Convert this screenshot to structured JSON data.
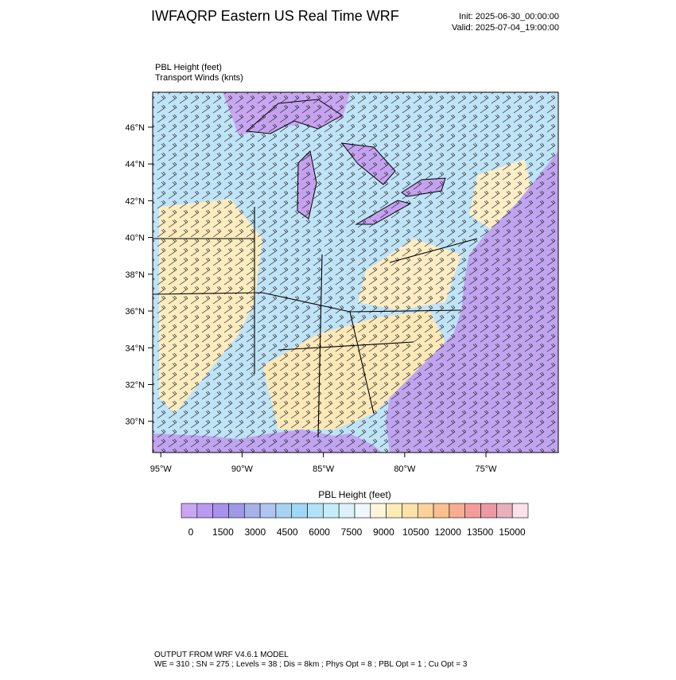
{
  "header": {
    "title": "IWFAQRP Eastern US Real Time WRF",
    "init": "Init: 2025-06-30_00:00:00",
    "valid": "Valid: 2025-07-04_19:00:00"
  },
  "map": {
    "field_label": "PBL Height   (feet)",
    "vector_label": "Transport Winds   (knts)",
    "latlim": [
      28.3,
      47.9
    ],
    "lonlim": [
      -95.5,
      -70.55
    ],
    "lat_ticks": [
      {
        "value": 46,
        "label": "46°N"
      },
      {
        "value": 44,
        "label": "44°N"
      },
      {
        "value": 42,
        "label": "42°N"
      },
      {
        "value": 40,
        "label": "40°N"
      },
      {
        "value": 38,
        "label": "38°N"
      },
      {
        "value": 36,
        "label": "36°N"
      },
      {
        "value": 34,
        "label": "34°N"
      },
      {
        "value": 32,
        "label": "32°N"
      },
      {
        "value": 30,
        "label": "30°N"
      }
    ],
    "lon_ticks": [
      {
        "value": -95,
        "label": "95°W"
      },
      {
        "value": -90,
        "label": "90°W"
      },
      {
        "value": -85,
        "label": "85°W"
      },
      {
        "value": -80,
        "label": "80°W"
      },
      {
        "value": -75,
        "label": "75°W"
      }
    ]
  },
  "colorbar": {
    "title": "PBL Height  (feet)",
    "labels": [
      0,
      1500,
      3000,
      4500,
      6000,
      7500,
      9000,
      10500,
      12000,
      13500,
      15000
    ],
    "colors": [
      "#c9a6f2",
      "#b99af0",
      "#a892ec",
      "#9e9ae6",
      "#a6b2ea",
      "#b0c4f2",
      "#a8d2f4",
      "#9ed8f6",
      "#b2e2f8",
      "#c6ecfa",
      "#dbf2fb",
      "#eef8fc",
      "#fdf6dc",
      "#fdecb8",
      "#fde2a8",
      "#fbd29a",
      "#f9c092",
      "#f8ac92",
      "#f49c9c",
      "#eb9aa4",
      "#e8b0bc",
      "#fbe2ea"
    ]
  },
  "footer": {
    "line1": "OUTPUT FROM WRF V4.6.1 MODEL",
    "line2": "WE = 310 ; SN = 275 ; Levels = 38 ; Dis = 8km ; Phys Opt = 8 ; PBL Opt = 1 ; Cu Opt = 3"
  }
}
